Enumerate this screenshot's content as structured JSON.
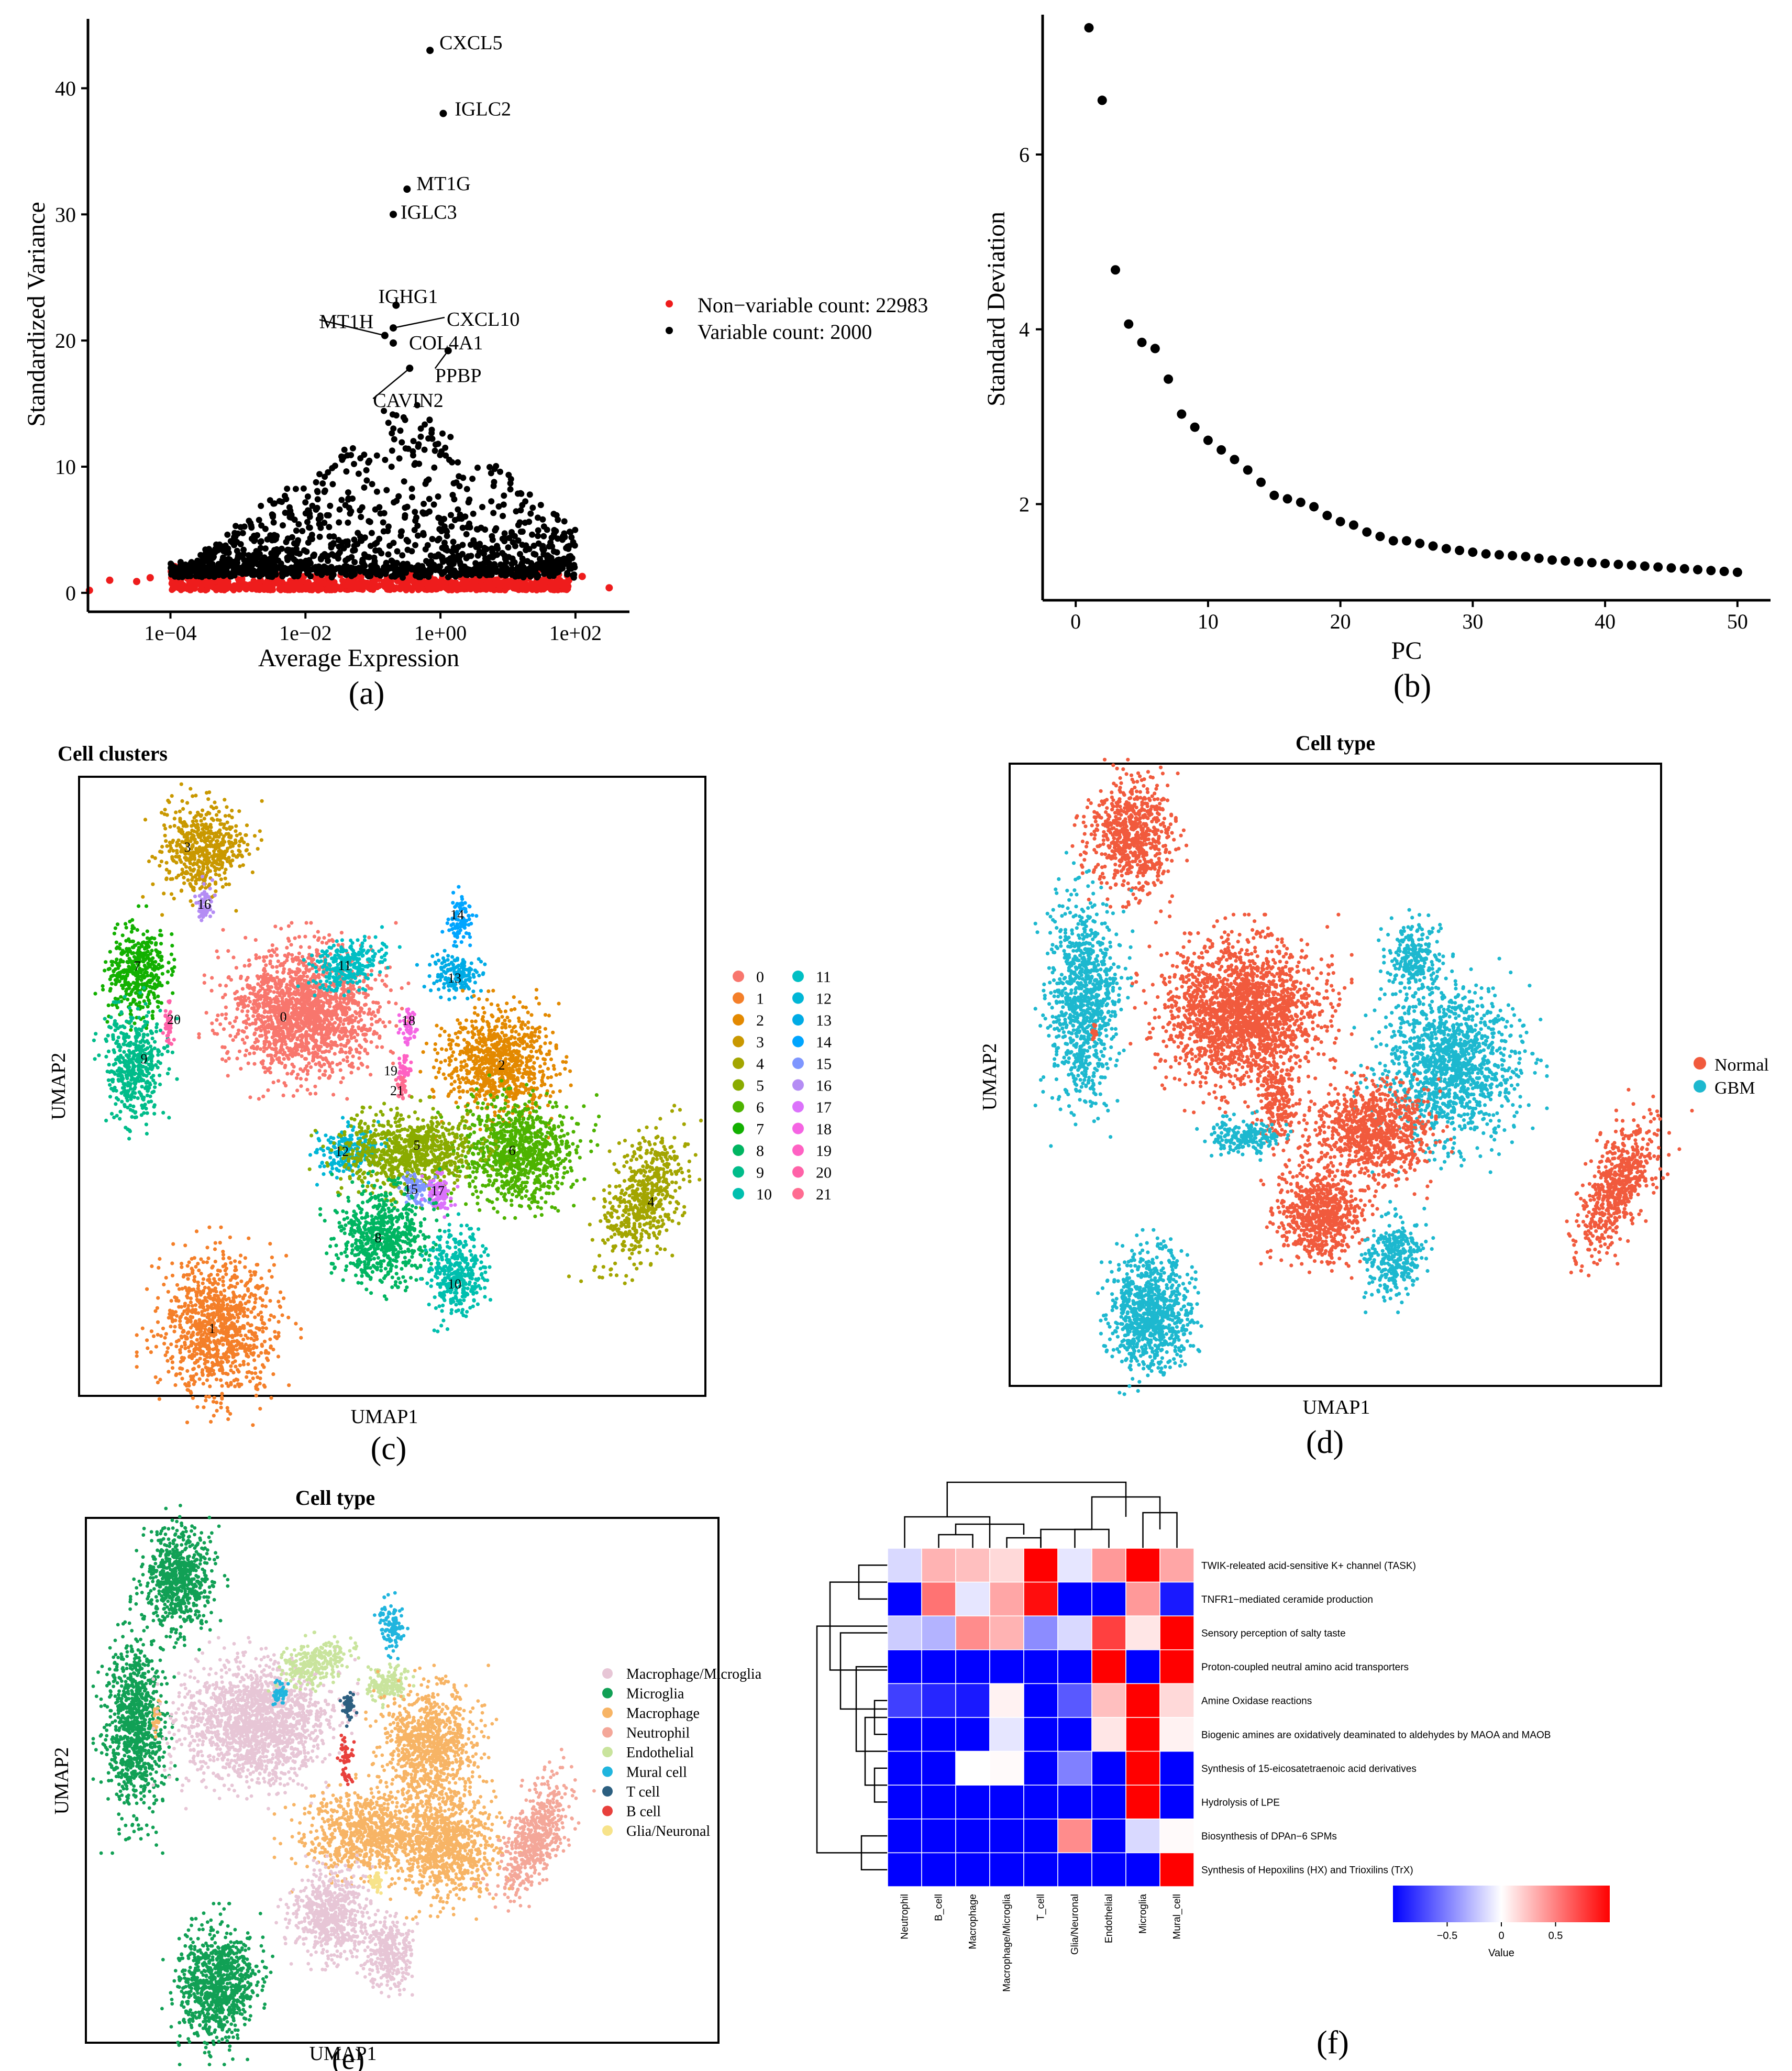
{
  "chart_data": [
    {
      "id": "a",
      "panel_label": "(a)",
      "type": "scatter",
      "xlabel": "Average Expression",
      "ylabel": "Standardized Variance",
      "x_scale": "log10",
      "x_ticks": [
        "1e−04",
        "1e−02",
        "1e+00",
        "1e+02"
      ],
      "x_tick_values": [
        0.0001,
        0.01,
        1,
        100
      ],
      "y_ticks": [
        0,
        10,
        20,
        30,
        40
      ],
      "xlim": [
        6e-06,
        100
      ],
      "ylim": [
        -1.5,
        45.5
      ],
      "legend": [
        {
          "label": "Non−variable count: 22983",
          "color": "#ee1c1c"
        },
        {
          "label": "Variable count: 2000",
          "color": "#000000"
        }
      ],
      "labeled_points": [
        {
          "label": "CXCL5",
          "x": 0.7,
          "y": 43.0
        },
        {
          "label": "IGLC2",
          "x": 1.1,
          "y": 38.0
        },
        {
          "label": "MT1G",
          "x": 0.32,
          "y": 32.0
        },
        {
          "label": "IGLC3",
          "x": 0.2,
          "y": 30.0
        },
        {
          "label": "IGHG1",
          "x": 0.22,
          "y": 22.8
        },
        {
          "label": "CXCL10",
          "x": 0.2,
          "y": 21.0
        },
        {
          "label": "MT1H",
          "x": 0.15,
          "y": 20.4
        },
        {
          "label": "COL4A1",
          "x": 0.2,
          "y": 19.8
        },
        {
          "label": "PPBP",
          "x": 1.3,
          "y": 19.2
        },
        {
          "label": "CAVIN2",
          "x": 0.35,
          "y": 17.8
        }
      ]
    },
    {
      "id": "b",
      "panel_label": "(b)",
      "type": "scatter",
      "xlabel": "PC",
      "ylabel": "Standard Deviation",
      "x_ticks": [
        0,
        10,
        20,
        30,
        40,
        50
      ],
      "y_ticks": [
        2,
        4,
        6
      ],
      "xlim": [
        -2.5,
        52.5
      ],
      "ylim": [
        0.9,
        7.6
      ],
      "x": [
        1,
        2,
        3,
        4,
        5,
        6,
        7,
        8,
        9,
        10,
        11,
        12,
        13,
        14,
        15,
        16,
        17,
        18,
        19,
        20,
        21,
        22,
        23,
        24,
        25,
        26,
        27,
        28,
        29,
        30,
        31,
        32,
        33,
        34,
        35,
        36,
        37,
        38,
        39,
        40,
        41,
        42,
        43,
        44,
        45,
        46,
        47,
        48,
        49,
        50
      ],
      "y": [
        7.45,
        6.62,
        4.68,
        4.06,
        3.85,
        3.78,
        3.43,
        3.03,
        2.88,
        2.73,
        2.62,
        2.51,
        2.39,
        2.25,
        2.1,
        2.06,
        2.02,
        1.97,
        1.87,
        1.8,
        1.76,
        1.68,
        1.63,
        1.58,
        1.58,
        1.55,
        1.52,
        1.49,
        1.47,
        1.45,
        1.43,
        1.42,
        1.41,
        1.4,
        1.38,
        1.36,
        1.35,
        1.34,
        1.33,
        1.32,
        1.31,
        1.3,
        1.29,
        1.28,
        1.27,
        1.26,
        1.25,
        1.24,
        1.23,
        1.22
      ]
    },
    {
      "id": "c",
      "panel_label": "(c)",
      "type": "scatter",
      "title": "Cell clusters",
      "xlabel": "UMAP1",
      "ylabel": "UMAP2",
      "legend_title": "",
      "legend": [
        {
          "label": "0",
          "color": "#F8766D"
        },
        {
          "label": "1",
          "color": "#F47F29"
        },
        {
          "label": "2",
          "color": "#E38900"
        },
        {
          "label": "3",
          "color": "#C99800"
        },
        {
          "label": "4",
          "color": "#A3A500"
        },
        {
          "label": "5",
          "color": "#8AAB00"
        },
        {
          "label": "6",
          "color": "#4DB300"
        },
        {
          "label": "7",
          "color": "#12B000"
        },
        {
          "label": "8",
          "color": "#00B561"
        },
        {
          "label": "9",
          "color": "#00BC8A"
        },
        {
          "label": "10",
          "color": "#00BFAE"
        },
        {
          "label": "11",
          "color": "#00BFC4"
        },
        {
          "label": "12",
          "color": "#00B6D6"
        },
        {
          "label": "13",
          "color": "#00ABE5"
        },
        {
          "label": "14",
          "color": "#00A5FF"
        },
        {
          "label": "15",
          "color": "#7E96FF"
        },
        {
          "label": "16",
          "color": "#B48CF4"
        },
        {
          "label": "17",
          "color": "#DB72FB"
        },
        {
          "label": "18",
          "color": "#F564E3"
        },
        {
          "label": "19",
          "color": "#FF61C3"
        },
        {
          "label": "20",
          "color": "#FF62A8"
        },
        {
          "label": "21",
          "color": "#FF6C91"
        }
      ]
    },
    {
      "id": "d",
      "panel_label": "(d)",
      "type": "scatter",
      "title": "Cell type",
      "xlabel": "UMAP1",
      "ylabel": "UMAP2",
      "legend": [
        {
          "label": "Normal",
          "color": "#F15A3D"
        },
        {
          "label": "GBM",
          "color": "#1DB8CF"
        }
      ]
    },
    {
      "id": "e",
      "panel_label": "(e)",
      "type": "scatter",
      "title": "Cell type",
      "xlabel": "UMAP1",
      "ylabel": "UMAP2",
      "legend": [
        {
          "label": "Macrophage/Microglia",
          "color": "#E7C6D6"
        },
        {
          "label": "Microglia",
          "color": "#11A055"
        },
        {
          "label": "Macrophage",
          "color": "#F7B465"
        },
        {
          "label": "Neutrophil",
          "color": "#F4A799"
        },
        {
          "label": "Endothelial",
          "color": "#C9E49D"
        },
        {
          "label": "Mural cell",
          "color": "#20B5DE"
        },
        {
          "label": "T cell",
          "color": "#2C5F80"
        },
        {
          "label": "B cell",
          "color": "#E8403C"
        },
        {
          "label": "Glia/Neuronal",
          "color": "#F7E38A"
        }
      ]
    },
    {
      "id": "f",
      "panel_label": "(f)",
      "type": "heatmap",
      "columns": [
        "Neutrophil",
        "B_cell",
        "Macrophage",
        "Macrophage/Microglia",
        "T_cell",
        "Glia/Neuronal",
        "Endothelial",
        "Microglia",
        "Mural_cell"
      ],
      "rows": [
        "TWIK-releated acid-sensitive K+ channel (TASK)",
        "TNFR1−mediated ceramide production",
        "Sensory perception of salty taste",
        "Proton-coupled neutral amino acid transporters",
        "Amine Oxidase reactions",
        "Biogenic amines are oxidatively deaminated to aldehydes by MAOA and MAOB",
        "Synthesis of 15-eicosatetraenoic acid derivatives",
        "Hydrolysis of LPE",
        "Biosynthesis of DPAn−6 SPMs",
        "Synthesis of Hepoxilins (HX) and Trioxilins (TrX)"
      ],
      "values": [
        [
          -0.15,
          0.3,
          0.25,
          0.15,
          1.0,
          -0.1,
          0.4,
          1.0,
          0.35
        ],
        [
          -1.0,
          0.55,
          -0.1,
          0.35,
          0.95,
          -1.0,
          -1.0,
          0.4,
          -0.9
        ],
        [
          -0.2,
          -0.3,
          0.45,
          0.3,
          -0.45,
          -0.15,
          0.75,
          0.1,
          1.0
        ],
        [
          -1.0,
          -1.0,
          -1.0,
          -1.0,
          -1.0,
          -1.0,
          1.0,
          -1.0,
          1.0
        ],
        [
          -0.75,
          -0.85,
          -0.9,
          0.05,
          -1.0,
          -0.65,
          0.25,
          1.0,
          0.15
        ],
        [
          -1.0,
          -1.0,
          -1.0,
          -0.1,
          -1.0,
          -1.0,
          0.1,
          1.0,
          0.05
        ],
        [
          -1.0,
          -1.0,
          0.0,
          0.02,
          -1.0,
          -0.5,
          -1.0,
          1.0,
          -1.0
        ],
        [
          -1.0,
          -1.0,
          -1.0,
          -1.0,
          -1.0,
          -1.0,
          -1.0,
          1.0,
          -1.0
        ],
        [
          -1.0,
          -1.0,
          -1.0,
          -1.0,
          -1.0,
          0.45,
          -1.0,
          -0.15,
          0.02
        ],
        [
          -1.0,
          -1.0,
          -1.0,
          -1.0,
          -1.0,
          -1.0,
          -1.0,
          -1.0,
          1.0
        ]
      ],
      "colorbar": {
        "label": "Value",
        "ticks": [
          "−0.5",
          "0",
          "0.5"
        ],
        "tick_values": [
          -0.5,
          0,
          0.5
        ],
        "range": [
          -1,
          1
        ],
        "low": "#0000ff",
        "mid": "#ffffff",
        "high": "#ff0000"
      }
    }
  ]
}
